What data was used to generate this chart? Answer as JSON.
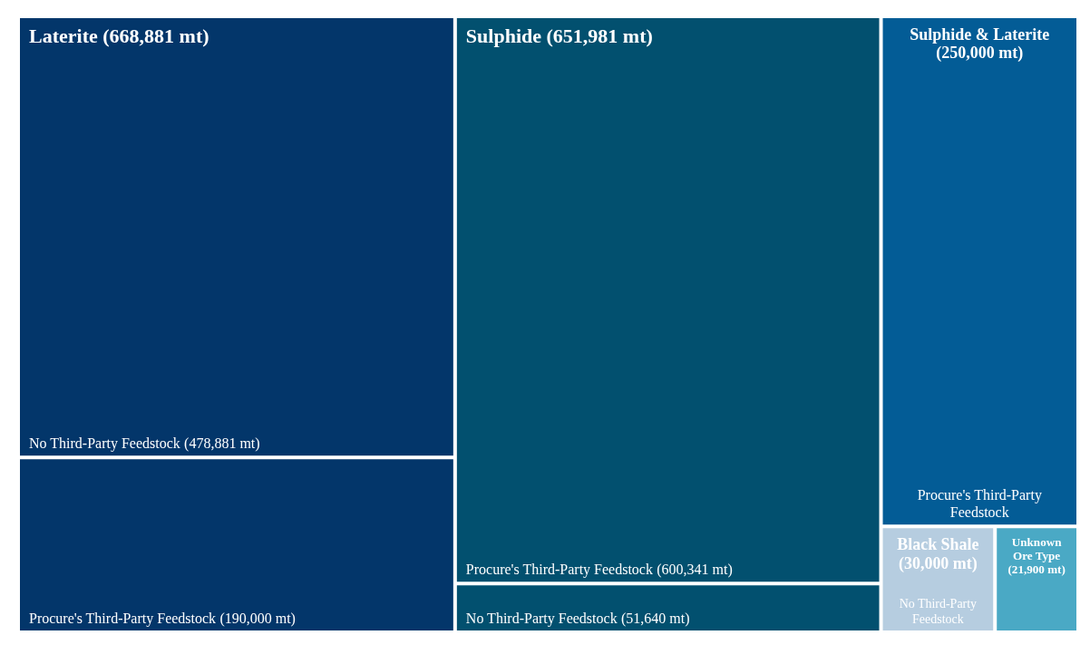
{
  "chart_data": {
    "type": "other",
    "categories": [
      "No Third-Party Feedstock",
      "Procure's Third-Party Feedstock",
      "Procure's Third-Party Feedstock",
      "No Third-Party Feedstock",
      "Procure's Third-Party Feedstock",
      "No Third-Party Feedstock",
      "Unknown Ore Type"
    ],
    "series": [
      {
        "name": "Laterite (668,881 mt)",
        "color": "#03366a",
        "values": [
          478881,
          190000,
          null,
          null,
          null,
          null,
          null
        ],
        "value_labels": [
          "(478,881 mt)",
          "(190,000 mt)",
          null,
          null,
          null,
          null,
          null
        ]
      },
      {
        "name": "Sulphide (651,981 mt)",
        "color": "#02506f",
        "values": [
          null,
          null,
          600341,
          51640,
          null,
          null,
          null
        ],
        "value_labels": [
          null,
          null,
          "(600,341 mt)",
          "(51,640 mt)",
          null,
          null,
          null
        ]
      },
      {
        "name": "Sulphide & Laterite",
        "color": "#035c96",
        "values": [
          null,
          null,
          null,
          null,
          250000,
          null,
          null
        ],
        "value_labels": [
          null,
          null,
          null,
          null,
          "(250,000 mt)",
          null,
          null
        ]
      },
      {
        "name": "Black Shale",
        "color": "#b6cde0",
        "values": [
          null,
          null,
          null,
          null,
          null,
          30000,
          null
        ],
        "value_labels": [
          null,
          null,
          null,
          null,
          null,
          "(30,000 mt)",
          null
        ]
      },
      {
        "color": "#4aa9c5",
        "values": [
          null,
          null,
          null,
          null,
          null,
          null,
          21900
        ],
        "value_labels": [
          null,
          null,
          null,
          null,
          null,
          null,
          "(21,900 mt)"
        ]
      }
    ]
  }
}
